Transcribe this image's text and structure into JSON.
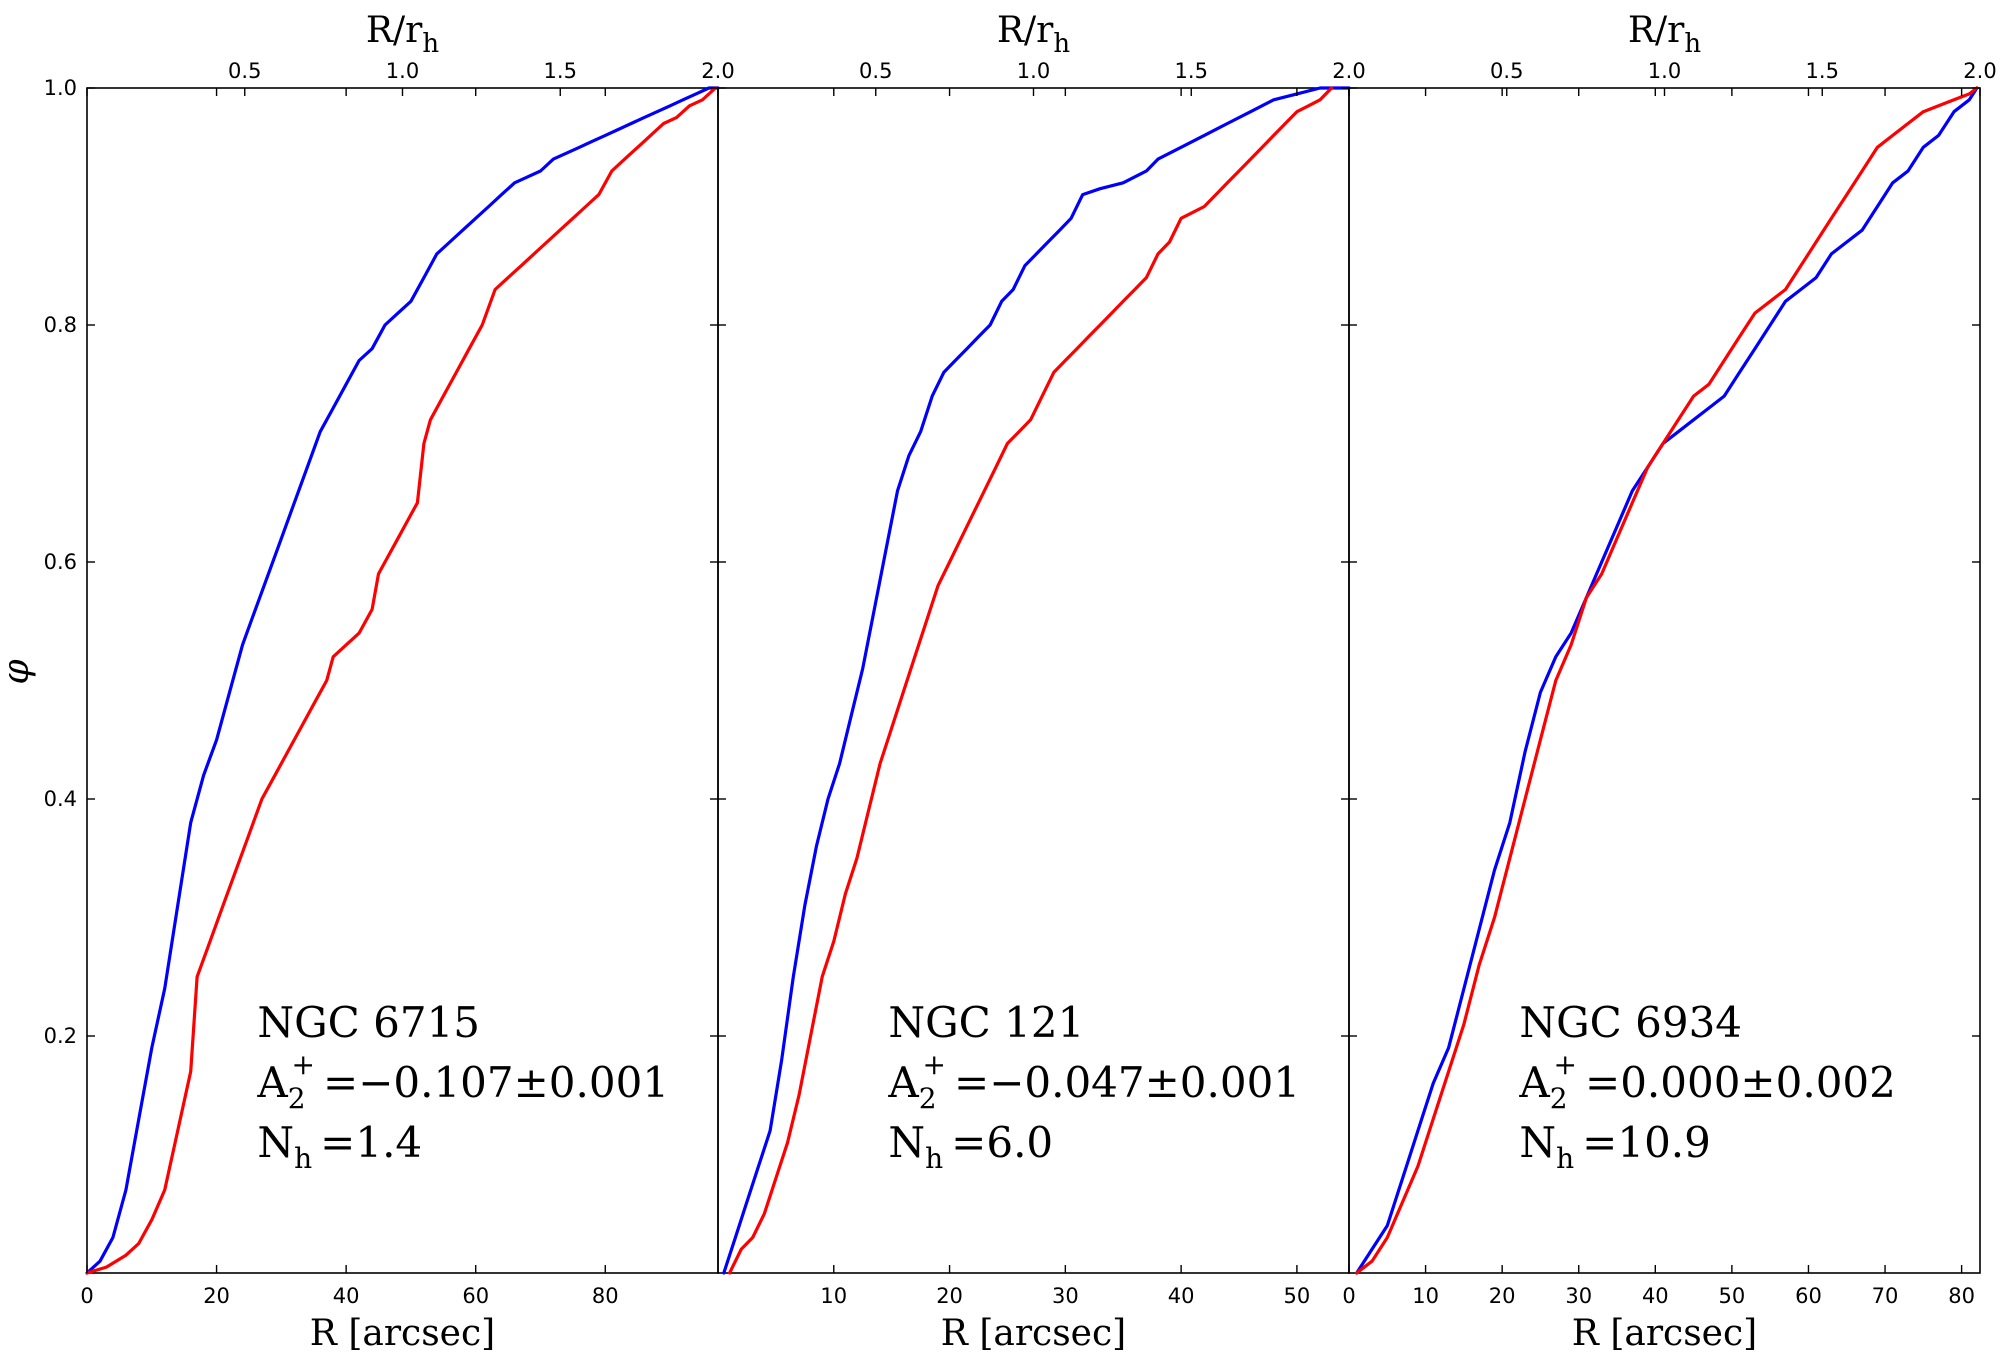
{
  "ylabel": "φ",
  "chart_data": [
    {
      "type": "line",
      "name": "NGC 6715",
      "xlabel": "R [arcsec]",
      "top_xlabel_base": "R/r",
      "top_xlabel_sub": "h",
      "xlim": [
        0,
        97.4
      ],
      "ylim": [
        0,
        1.0
      ],
      "xticks": [
        0,
        20,
        40,
        60,
        80
      ],
      "xtick_labels": [
        "0",
        "20",
        "40",
        "60",
        "80"
      ],
      "top_xticks": [
        0.5,
        1.0,
        1.5,
        2.0
      ],
      "top_xtick_labels": [
        "0.5",
        "1.0",
        "1.5",
        "2.0"
      ],
      "top_xlim": [
        0,
        2.0
      ],
      "yticks": [
        0.2,
        0.4,
        0.6,
        0.8,
        1.0
      ],
      "ytick_labels": [
        "0.2",
        "0.4",
        "0.6",
        "0.8",
        "1.0"
      ],
      "annotation": {
        "cluster": "NGC 6715",
        "a2_main": "A",
        "a2_sub": "2",
        "a2_sup": "+",
        "a2_value": "=−0.107±0.001",
        "nh_main": "N",
        "nh_sub": "h",
        "nh_value": "=1.4"
      },
      "series": [
        {
          "name": "blue",
          "color": "#0000ff",
          "x": [
            0,
            2,
            4,
            6,
            8,
            10,
            12,
            14,
            16,
            18,
            20,
            22,
            24,
            26,
            28,
            30,
            32,
            34,
            36,
            38,
            40,
            42,
            44,
            46,
            48,
            50,
            52,
            54,
            56,
            58,
            60,
            62,
            64,
            66,
            68,
            70,
            72,
            74,
            76,
            78,
            80,
            82,
            84,
            86,
            88,
            90,
            92,
            94,
            96,
            97.4
          ],
          "values": [
            0,
            0.01,
            0.03,
            0.07,
            0.13,
            0.19,
            0.24,
            0.31,
            0.38,
            0.42,
            0.45,
            0.49,
            0.53,
            0.56,
            0.59,
            0.62,
            0.65,
            0.68,
            0.71,
            0.73,
            0.75,
            0.77,
            0.78,
            0.8,
            0.81,
            0.82,
            0.84,
            0.86,
            0.87,
            0.88,
            0.89,
            0.9,
            0.91,
            0.92,
            0.925,
            0.93,
            0.94,
            0.945,
            0.95,
            0.955,
            0.96,
            0.965,
            0.97,
            0.975,
            0.98,
            0.985,
            0.99,
            0.995,
            1.0,
            1.0
          ]
        },
        {
          "name": "red",
          "color": "#ff0000",
          "x": [
            0,
            3,
            6,
            8,
            10,
            12,
            14,
            16,
            17,
            19,
            21,
            23,
            25,
            27,
            29,
            31,
            33,
            35,
            37,
            38,
            40,
            42,
            44,
            45,
            46,
            48,
            50,
            51,
            52,
            53,
            55,
            57,
            59,
            61,
            63,
            65,
            67,
            69,
            71,
            73,
            75,
            77,
            79,
            81,
            83,
            85,
            87,
            89,
            91,
            93,
            95,
            97
          ],
          "values": [
            0,
            0.005,
            0.015,
            0.025,
            0.045,
            0.07,
            0.12,
            0.17,
            0.25,
            0.28,
            0.31,
            0.34,
            0.37,
            0.4,
            0.42,
            0.44,
            0.46,
            0.48,
            0.5,
            0.52,
            0.53,
            0.54,
            0.56,
            0.59,
            0.6,
            0.62,
            0.64,
            0.65,
            0.7,
            0.72,
            0.74,
            0.76,
            0.78,
            0.8,
            0.83,
            0.84,
            0.85,
            0.86,
            0.87,
            0.88,
            0.89,
            0.9,
            0.91,
            0.93,
            0.94,
            0.95,
            0.96,
            0.97,
            0.975,
            0.985,
            0.99,
            1.0
          ]
        }
      ]
    },
    {
      "type": "line",
      "name": "NGC 121",
      "xlabel": "R [arcsec]",
      "top_xlabel_base": "R/r",
      "top_xlabel_sub": "h",
      "xlim": [
        0,
        54.5
      ],
      "ylim": [
        0,
        1.0
      ],
      "xticks": [
        10,
        20,
        30,
        40,
        50
      ],
      "xtick_labels": [
        "10",
        "20",
        "30",
        "40",
        "50"
      ],
      "top_xticks": [
        0.5,
        1.0,
        1.5,
        2.0
      ],
      "top_xtick_labels": [
        "0.5",
        "1.0",
        "1.5",
        "2.0"
      ],
      "top_xlim": [
        0,
        2.0
      ],
      "yticks": [
        0.2,
        0.4,
        0.6,
        0.8,
        1.0
      ],
      "ytick_labels": [
        "",
        "",
        "",
        "",
        ""
      ],
      "annotation": {
        "cluster": "NGC 121",
        "a2_main": "A",
        "a2_sub": "2",
        "a2_sup": "+",
        "a2_value": "=−0.047±0.001",
        "nh_main": "N",
        "nh_sub": "h",
        "nh_value": "=6.0"
      },
      "series": [
        {
          "name": "blue",
          "color": "#0000ff",
          "x": [
            0.5,
            1.5,
            2.5,
            3.5,
            4.5,
            5.5,
            6.5,
            7.5,
            8.5,
            9.5,
            10.5,
            11.5,
            12.5,
            13.5,
            14.5,
            15.5,
            16.5,
            17.5,
            18.5,
            19.5,
            20.5,
            21.5,
            22.5,
            23.5,
            24.5,
            25.5,
            26.5,
            27.5,
            28.5,
            29.5,
            30.5,
            31.5,
            33,
            35,
            37,
            38,
            40,
            42,
            44,
            46,
            48,
            50,
            52,
            54.5
          ],
          "values": [
            0,
            0.03,
            0.06,
            0.09,
            0.12,
            0.18,
            0.25,
            0.31,
            0.36,
            0.4,
            0.43,
            0.47,
            0.51,
            0.56,
            0.61,
            0.66,
            0.69,
            0.71,
            0.74,
            0.76,
            0.77,
            0.78,
            0.79,
            0.8,
            0.82,
            0.83,
            0.85,
            0.86,
            0.87,
            0.88,
            0.89,
            0.91,
            0.915,
            0.92,
            0.93,
            0.94,
            0.95,
            0.96,
            0.97,
            0.98,
            0.99,
            0.995,
            1.0,
            1.0
          ]
        },
        {
          "name": "red",
          "color": "#ff0000",
          "x": [
            1,
            2,
            3,
            4,
            5,
            6,
            7,
            8,
            9,
            10,
            11,
            12,
            13,
            14,
            15,
            16,
            17,
            18,
            19,
            20,
            21,
            22,
            23,
            24,
            25,
            26,
            27,
            28,
            29,
            30,
            31,
            32,
            33,
            34,
            35,
            36,
            37,
            38,
            39,
            40,
            41,
            42,
            43,
            44,
            45,
            46,
            47,
            48,
            49,
            50,
            51,
            52,
            53
          ],
          "values": [
            0,
            0.02,
            0.03,
            0.05,
            0.08,
            0.11,
            0.15,
            0.2,
            0.25,
            0.28,
            0.32,
            0.35,
            0.39,
            0.43,
            0.46,
            0.49,
            0.52,
            0.55,
            0.58,
            0.6,
            0.62,
            0.64,
            0.66,
            0.68,
            0.7,
            0.71,
            0.72,
            0.74,
            0.76,
            0.77,
            0.78,
            0.79,
            0.8,
            0.81,
            0.82,
            0.83,
            0.84,
            0.86,
            0.87,
            0.89,
            0.895,
            0.9,
            0.91,
            0.92,
            0.93,
            0.94,
            0.95,
            0.96,
            0.97,
            0.98,
            0.985,
            0.99,
            1.0
          ]
        }
      ]
    },
    {
      "type": "line",
      "name": "NGC 6934",
      "xlabel": "R [arcsec]",
      "top_xlabel_base": "R/r",
      "top_xlabel_sub": "h",
      "xlim": [
        0,
        82.4
      ],
      "ylim": [
        0,
        1.0
      ],
      "xticks": [
        0,
        10,
        20,
        30,
        40,
        50,
        60,
        70,
        80
      ],
      "xtick_labels": [
        "0",
        "10",
        "20",
        "30",
        "40",
        "50",
        "60",
        "70",
        "80"
      ],
      "top_xticks": [
        0.5,
        1.0,
        1.5,
        2.0
      ],
      "top_xtick_labels": [
        "0.5",
        "1.0",
        "1.5",
        "2.0"
      ],
      "top_xlim": [
        0,
        2.0
      ],
      "yticks": [
        0.2,
        0.4,
        0.6,
        0.8,
        1.0
      ],
      "ytick_labels": [
        "",
        "",
        "",
        "",
        ""
      ],
      "annotation": {
        "cluster": "NGC 6934",
        "a2_main": "A",
        "a2_sub": "2",
        "a2_sup": "+",
        "a2_value": "=0.000±0.002",
        "nh_main": "N",
        "nh_sub": "h",
        "nh_value": "=10.9"
      },
      "series": [
        {
          "name": "blue",
          "color": "#0000ff",
          "x": [
            1,
            3,
            5,
            7,
            9,
            11,
            13,
            15,
            17,
            19,
            21,
            23,
            25,
            27,
            29,
            31,
            33,
            35,
            37,
            39,
            41,
            43,
            45,
            47,
            49,
            51,
            53,
            55,
            57,
            59,
            61,
            63,
            65,
            67,
            69,
            71,
            73,
            75,
            77,
            79,
            81,
            82
          ],
          "values": [
            0,
            0.02,
            0.04,
            0.08,
            0.12,
            0.16,
            0.19,
            0.24,
            0.29,
            0.34,
            0.38,
            0.44,
            0.49,
            0.52,
            0.54,
            0.57,
            0.6,
            0.63,
            0.66,
            0.68,
            0.7,
            0.71,
            0.72,
            0.73,
            0.74,
            0.76,
            0.78,
            0.8,
            0.82,
            0.83,
            0.84,
            0.86,
            0.87,
            0.88,
            0.9,
            0.92,
            0.93,
            0.95,
            0.96,
            0.98,
            0.99,
            1.0
          ]
        },
        {
          "name": "red",
          "color": "#ff0000",
          "x": [
            1,
            3,
            5,
            7,
            9,
            11,
            13,
            15,
            17,
            19,
            21,
            23,
            25,
            27,
            29,
            31,
            33,
            35,
            37,
            39,
            41,
            43,
            45,
            47,
            49,
            51,
            53,
            55,
            57,
            59,
            61,
            63,
            65,
            67,
            69,
            71,
            73,
            75,
            77,
            79,
            81,
            82
          ],
          "values": [
            0,
            0.01,
            0.03,
            0.06,
            0.09,
            0.13,
            0.17,
            0.21,
            0.26,
            0.3,
            0.35,
            0.4,
            0.45,
            0.5,
            0.53,
            0.57,
            0.59,
            0.62,
            0.65,
            0.68,
            0.7,
            0.72,
            0.74,
            0.75,
            0.77,
            0.79,
            0.81,
            0.82,
            0.83,
            0.85,
            0.87,
            0.89,
            0.91,
            0.93,
            0.95,
            0.96,
            0.97,
            0.98,
            0.985,
            0.99,
            0.995,
            1.0
          ]
        }
      ]
    }
  ]
}
